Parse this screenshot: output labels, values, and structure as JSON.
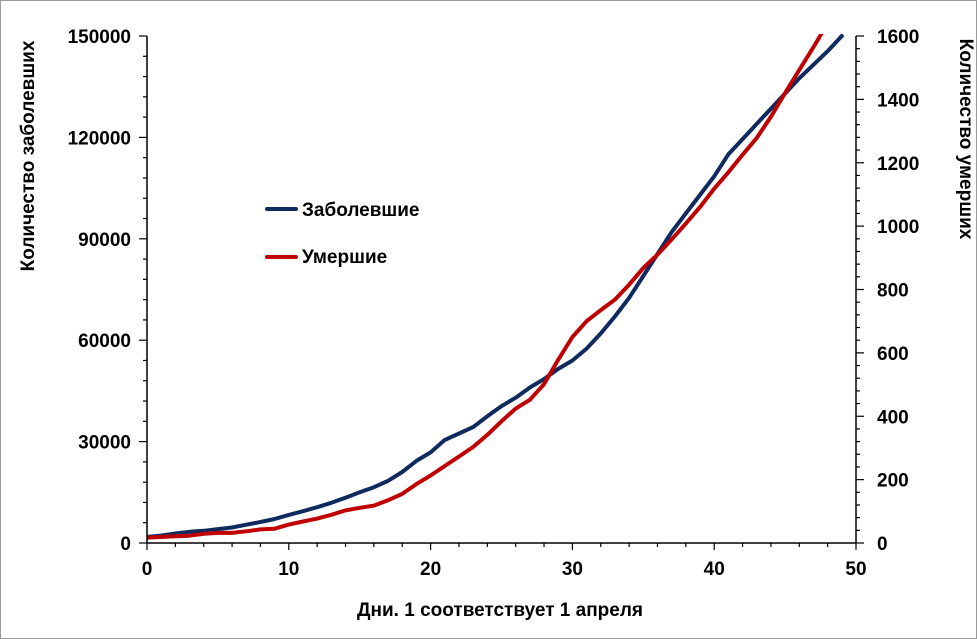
{
  "chart_data": {
    "type": "line",
    "xlabel": "Дни. 1 соответствует 1 апреля",
    "ylabel_left": "Количество заболевших",
    "ylabel_right": "Количество умерших",
    "xlim": [
      0,
      50
    ],
    "ylim_left": [
      0,
      150000
    ],
    "ylim_right": [
      0,
      1600
    ],
    "x_ticks": [
      0,
      10,
      20,
      30,
      40,
      50
    ],
    "y_ticks_left": [
      0,
      30000,
      60000,
      90000,
      120000,
      150000
    ],
    "y_ticks_right": [
      0,
      200,
      400,
      600,
      800,
      1000,
      1200,
      1400,
      1600
    ],
    "grid": false,
    "legend_position": "upper-left",
    "series": [
      {
        "name": "Заболевшие",
        "axis": "left",
        "color": "#0f2a5e",
        "x": [
          0,
          1,
          2,
          3,
          4,
          5,
          6,
          7,
          8,
          9,
          10,
          11,
          12,
          13,
          14,
          15,
          16,
          17,
          18,
          19,
          20,
          21,
          22,
          23,
          24,
          25,
          26,
          27,
          28,
          29,
          30,
          31,
          32,
          33,
          34,
          35,
          36,
          37,
          38,
          39,
          40,
          41,
          42,
          43,
          44,
          45,
          46,
          47,
          48,
          49
        ],
        "values": [
          1800,
          2200,
          2800,
          3300,
          3600,
          4100,
          4600,
          5400,
          6200,
          7100,
          8300,
          9400,
          10600,
          11900,
          13400,
          15000,
          16500,
          18400,
          21000,
          24300,
          26800,
          30500,
          32400,
          34300,
          37500,
          40500,
          43000,
          46000,
          48500,
          51500,
          54000,
          57500,
          62000,
          67000,
          72500,
          79000,
          85500,
          92000,
          97500,
          103000,
          108500,
          115000,
          119500,
          124000,
          128500,
          133000,
          137500,
          141500,
          145500,
          150000
        ]
      },
      {
        "name": "Умершие",
        "axis": "right",
        "color": "#c00000",
        "x": [
          0,
          1,
          2,
          3,
          4,
          5,
          6,
          7,
          8,
          9,
          10,
          11,
          12,
          13,
          14,
          15,
          16,
          17,
          18,
          19,
          20,
          21,
          22,
          23,
          24,
          25,
          26,
          27,
          28,
          29,
          30,
          31,
          32,
          33,
          34,
          35,
          36,
          37,
          38,
          39,
          40,
          41,
          42,
          43,
          44,
          45,
          46,
          47,
          48
        ],
        "values": [
          17,
          19,
          21,
          23,
          29,
          32,
          32,
          37,
          43,
          45,
          58,
          68,
          77,
          89,
          103,
          111,
          118,
          135,
          155,
          186,
          213,
          243,
          273,
          303,
          341,
          384,
          424,
          452,
          501,
          578,
          650,
          700,
          735,
          768,
          815,
          868,
          910,
          958,
          1008,
          1060,
          1118,
          1170,
          1225,
          1278,
          1345,
          1420,
          1493,
          1565,
          1640
        ]
      }
    ]
  }
}
